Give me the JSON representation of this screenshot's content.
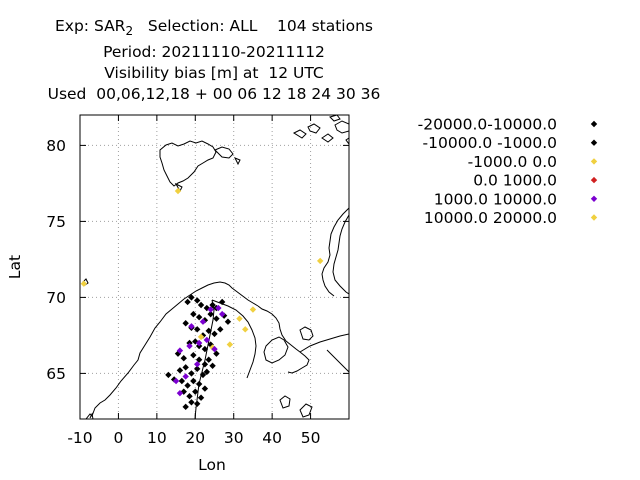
{
  "title_lines": [
    "Exp: SAR",
    "Period: 20211110-20211112",
    "Visibility bias [m] at  12 UTC",
    "Used  00,06,12,18 + 00 06 12 18 24 30 36"
  ],
  "title_exp_subscript": "2",
  "title_selection": "   Selection: ALL    104 stations",
  "chart_data": {
    "type": "scatter",
    "title": "Exp: SAR2   Selection: ALL    104 stations",
    "xlabel": "Lon",
    "ylabel": "Lat",
    "xlim": [
      -10,
      60
    ],
    "ylim": [
      62,
      82
    ],
    "xticks": [
      -10,
      0,
      10,
      20,
      30,
      40,
      50
    ],
    "yticks": [
      65,
      70,
      75,
      80
    ],
    "grid": true,
    "legend_placement": "right",
    "series": [
      {
        "name": "-20000.0-10000.0",
        "color": "#000000",
        "points": []
      },
      {
        "name": "-10000.0 -1000.0",
        "color": "#000000",
        "points": [
          [
            18.0,
            69.7
          ],
          [
            19.0,
            70.0
          ],
          [
            20.5,
            69.8
          ],
          [
            21.5,
            69.5
          ],
          [
            23.0,
            69.3
          ],
          [
            24.5,
            69.5
          ],
          [
            25.5,
            69.3
          ],
          [
            27.0,
            69.7
          ],
          [
            19.5,
            68.9
          ],
          [
            21.0,
            68.7
          ],
          [
            22.5,
            68.5
          ],
          [
            24.0,
            68.9
          ],
          [
            25.5,
            68.6
          ],
          [
            27.5,
            68.8
          ],
          [
            28.5,
            68.4
          ],
          [
            17.5,
            68.3
          ],
          [
            19.0,
            68.0
          ],
          [
            20.5,
            67.9
          ],
          [
            22.0,
            67.5
          ],
          [
            23.5,
            67.8
          ],
          [
            25.0,
            67.6
          ],
          [
            26.5,
            67.9
          ],
          [
            18.5,
            67.0
          ],
          [
            20.0,
            67.1
          ],
          [
            21.0,
            66.8
          ],
          [
            22.5,
            66.6
          ],
          [
            24.0,
            66.9
          ],
          [
            25.5,
            66.3
          ],
          [
            15.5,
            66.3
          ],
          [
            17.0,
            66.0
          ],
          [
            19.5,
            66.2
          ],
          [
            21.0,
            65.9
          ],
          [
            22.5,
            65.6
          ],
          [
            23.5,
            65.9
          ],
          [
            24.5,
            65.5
          ],
          [
            16.0,
            65.2
          ],
          [
            17.5,
            65.4
          ],
          [
            19.0,
            65.0
          ],
          [
            20.5,
            65.3
          ],
          [
            22.0,
            64.9
          ],
          [
            23.0,
            65.1
          ],
          [
            16.5,
            64.5
          ],
          [
            18.0,
            64.2
          ],
          [
            19.5,
            64.5
          ],
          [
            21.0,
            64.3
          ],
          [
            22.5,
            64.0
          ],
          [
            17.0,
            63.8
          ],
          [
            18.5,
            63.5
          ],
          [
            20.0,
            63.8
          ],
          [
            21.5,
            63.4
          ],
          [
            19.0,
            63.1
          ],
          [
            20.5,
            63.0
          ],
          [
            14.5,
            64.6
          ],
          [
            13.0,
            64.9
          ],
          [
            17.5,
            62.8
          ]
        ]
      },
      {
        "name": "-1000.0 0.0",
        "color": "#f0d040",
        "points": [
          [
            15.5,
            77.0
          ],
          [
            -9.0,
            70.9
          ],
          [
            52.5,
            72.4
          ],
          [
            31.5,
            68.6
          ],
          [
            33.0,
            67.9
          ],
          [
            35.0,
            69.2
          ],
          [
            29.0,
            66.9
          ],
          [
            24.5,
            66.7
          ],
          [
            21.5,
            67.4
          ]
        ]
      },
      {
        "name": "0.0 1000.0",
        "color": "#d02020",
        "points": []
      },
      {
        "name": "1000.0 10000.0",
        "color": "#7b00d0",
        "points": [
          [
            26.0,
            69.3
          ],
          [
            24.0,
            69.2
          ],
          [
            27.0,
            68.9
          ],
          [
            19.0,
            68.1
          ],
          [
            21.0,
            67.0
          ],
          [
            23.0,
            67.2
          ],
          [
            16.0,
            66.5
          ],
          [
            18.5,
            66.8
          ],
          [
            25.0,
            66.6
          ],
          [
            17.5,
            64.8
          ],
          [
            15.0,
            64.5
          ],
          [
            16.0,
            63.7
          ],
          [
            22.0,
            68.4
          ],
          [
            20.5,
            65.6
          ]
        ]
      },
      {
        "name": "10000.0 20000.0",
        "color": "#f0d040",
        "points": []
      }
    ]
  }
}
